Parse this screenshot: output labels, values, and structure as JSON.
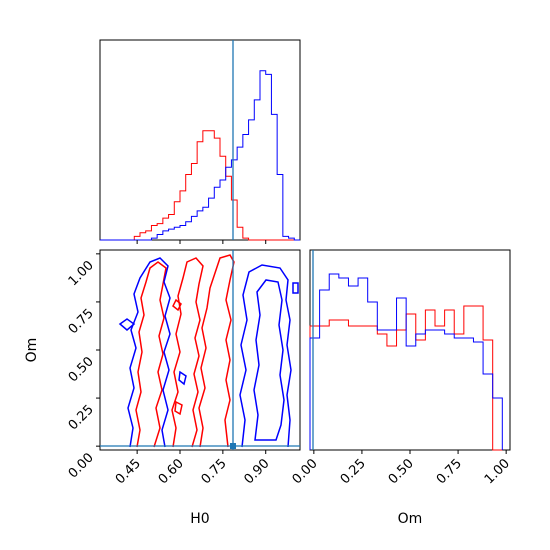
{
  "chart_data": {
    "type": "corner",
    "parameters": [
      "H0",
      "Om"
    ],
    "colors": {
      "series_a": "#ff0000",
      "series_b": "#0000ff",
      "truth": "#1f77b4"
    },
    "truth": {
      "H0": 0.8,
      "Om": 0.0
    },
    "axes": {
      "H0": {
        "label": "H0",
        "range": [
          0.32,
          1.02
        ],
        "ticks": [
          0.45,
          0.6,
          0.75,
          0.9
        ],
        "tick_labels": [
          "0.45",
          "0.60",
          "0.75",
          "0.90"
        ]
      },
      "Om": {
        "label": "Om",
        "range": [
          -0.02,
          1.02
        ],
        "ticks": [
          0.0,
          0.25,
          0.5,
          0.75,
          1.0
        ],
        "tick_labels": [
          "0.00",
          "0.25",
          "0.50",
          "0.75",
          "1.00"
        ]
      }
    },
    "hist_H0": {
      "bin_edges": [
        0.32,
        0.34,
        0.36,
        0.38,
        0.4,
        0.42,
        0.44,
        0.46,
        0.48,
        0.5,
        0.52,
        0.54,
        0.56,
        0.58,
        0.6,
        0.62,
        0.64,
        0.66,
        0.68,
        0.7,
        0.72,
        0.74,
        0.76,
        0.78,
        0.8,
        0.82,
        0.84,
        0.86,
        0.88,
        0.9,
        0.92,
        0.94,
        0.96,
        0.98,
        1.0,
        1.02
      ],
      "series": [
        {
          "color": "red",
          "counts": [
            0,
            0,
            0,
            0,
            0,
            0,
            0.02,
            0.04,
            0.05,
            0.08,
            0.09,
            0.12,
            0.14,
            0.21,
            0.27,
            0.36,
            0.42,
            0.54,
            0.6,
            0.6,
            0.56,
            0.46,
            0.35,
            0.22,
            0.07,
            0.01,
            0,
            0,
            0,
            0,
            0,
            0,
            0,
            0,
            0
          ]
        },
        {
          "color": "blue",
          "counts": [
            0,
            0,
            0,
            0,
            0,
            0,
            0,
            0,
            0,
            0.01,
            0.03,
            0.05,
            0.06,
            0.07,
            0.08,
            0.1,
            0.13,
            0.16,
            0.18,
            0.23,
            0.29,
            0.33,
            0.4,
            0.44,
            0.51,
            0.58,
            0.66,
            0.77,
            0.93,
            0.91,
            0.69,
            0.36,
            0.02,
            0.01,
            0
          ]
        }
      ]
    },
    "hist_Om": {
      "bin_edges": [
        -0.02,
        0.03,
        0.08,
        0.13,
        0.18,
        0.23,
        0.28,
        0.33,
        0.38,
        0.43,
        0.48,
        0.53,
        0.58,
        0.63,
        0.68,
        0.73,
        0.78,
        0.83,
        0.88,
        0.93,
        0.98
      ],
      "series": [
        {
          "color": "red",
          "counts": [
            0.62,
            0.62,
            0.65,
            0.65,
            0.62,
            0.62,
            0.62,
            0.58,
            0.52,
            0.6,
            0.68,
            0.55,
            0.7,
            0.62,
            0.7,
            0.58,
            0.72,
            0.72,
            0.55,
            0.0
          ]
        },
        {
          "color": "blue",
          "counts": [
            0.56,
            0.8,
            0.88,
            0.86,
            0.82,
            0.86,
            0.74,
            0.6,
            0.6,
            0.76,
            0.52,
            0.58,
            0.6,
            0.6,
            0.58,
            0.56,
            0.56,
            0.54,
            0.38,
            0.26
          ]
        }
      ]
    },
    "contours_2d": [
      {
        "color": "red",
        "approx_H0_bands": [
          [
            0.5,
            0.56
          ],
          [
            0.58,
            0.64
          ],
          [
            0.66,
            0.74
          ]
        ],
        "Om_range": [
          0.0,
          1.0
        ]
      },
      {
        "color": "blue",
        "approx_H0_bands": [
          [
            0.4,
            0.54
          ],
          [
            0.84,
            0.96
          ]
        ],
        "Om_range": [
          0.0,
          1.0
        ]
      }
    ]
  }
}
